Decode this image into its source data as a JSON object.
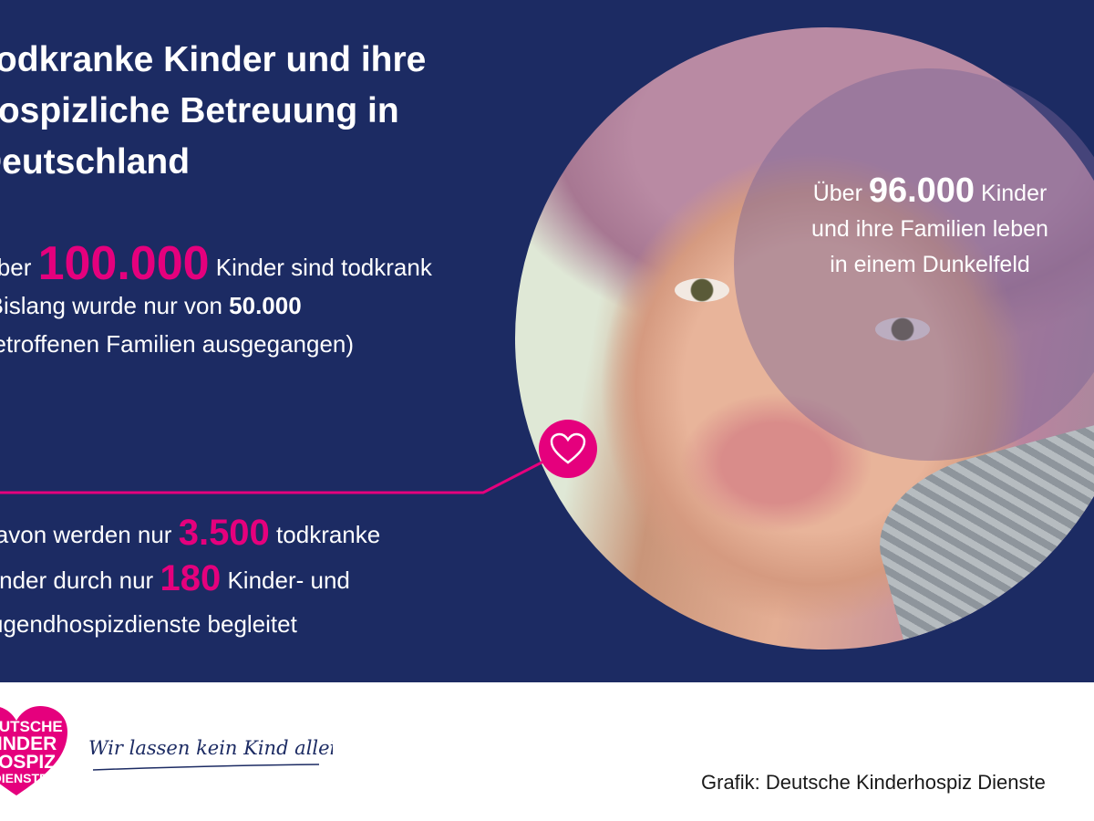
{
  "title": {
    "lines": [
      "Todkranke Kinder und ihre",
      "hospizliche Betreuung in",
      "Deutschland"
    ]
  },
  "stat1": {
    "prefix": "Über",
    "number": "100.000",
    "suffix": "Kinder sind todkrank",
    "line2_prefix": "(Bislang wurde nur von",
    "line2_number": "50.000",
    "line3": "betroffenen Familien ausgegangen)"
  },
  "stat2": {
    "line1_prefix": "Davon werden nur",
    "line1_number": "3.500",
    "line1_suffix": "todkranke",
    "line2_prefix": "Kinder durch nur",
    "line2_number": "180",
    "line2_suffix": "Kinder- und",
    "line3": "Jugendhospizdienste begleitet"
  },
  "overlay": {
    "prefix": "Über",
    "number": "96.000",
    "suffix": "Kinder",
    "line2": "und ihre Familien leben",
    "line3": "in einem Dunkelfeld"
  },
  "logo": {
    "lines": [
      "DEUTSCHE",
      "KINDER",
      "HOSPIZ",
      "DIENSTE"
    ],
    "slogan": "Wir lassen kein Kind allein!"
  },
  "credit": "Grafik: Deutsche Kinderhospiz Dienste",
  "icons": {
    "badge": "heart-icon"
  },
  "colors": {
    "background": "#1c2b63",
    "accent": "#e5007d",
    "text": "#ffffff"
  }
}
